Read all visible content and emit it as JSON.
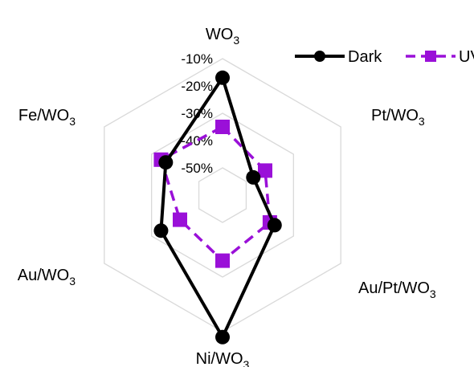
{
  "chart_data": {
    "type": "radar",
    "title": "",
    "axes": [
      {
        "base": "WO",
        "sub": "3"
      },
      {
        "base": "Pt/WO",
        "sub": "3"
      },
      {
        "base": "Au/Pt/WO",
        "sub": "3"
      },
      {
        "base": "Ni/WO",
        "sub": "3"
      },
      {
        "base": "Au/WO",
        "sub": "3"
      },
      {
        "base": "Fe/WO",
        "sub": "3"
      }
    ],
    "scale": {
      "center_value": -60,
      "outer_value": -10,
      "ticks": [
        -10,
        -20,
        -30,
        -40,
        -50
      ],
      "tick_labels": [
        "-10%",
        "-20%",
        "-30%",
        "-40%",
        "-50%"
      ],
      "gridlines": [
        -10,
        -30,
        -50
      ],
      "unit": "%"
    },
    "series": [
      {
        "name": "Dark",
        "values": [
          -17,
          -47,
          -38,
          -8,
          -34,
          -36
        ],
        "color": "#000000",
        "line_style": "solid",
        "marker": "circle"
      },
      {
        "name": "UV",
        "values": [
          -35,
          -42,
          -40,
          -36,
          -42,
          -34
        ],
        "color": "#9a10d8",
        "line_style": "dashed",
        "marker": "square"
      }
    ],
    "legend": {
      "position": "top-right"
    },
    "grid": true
  }
}
